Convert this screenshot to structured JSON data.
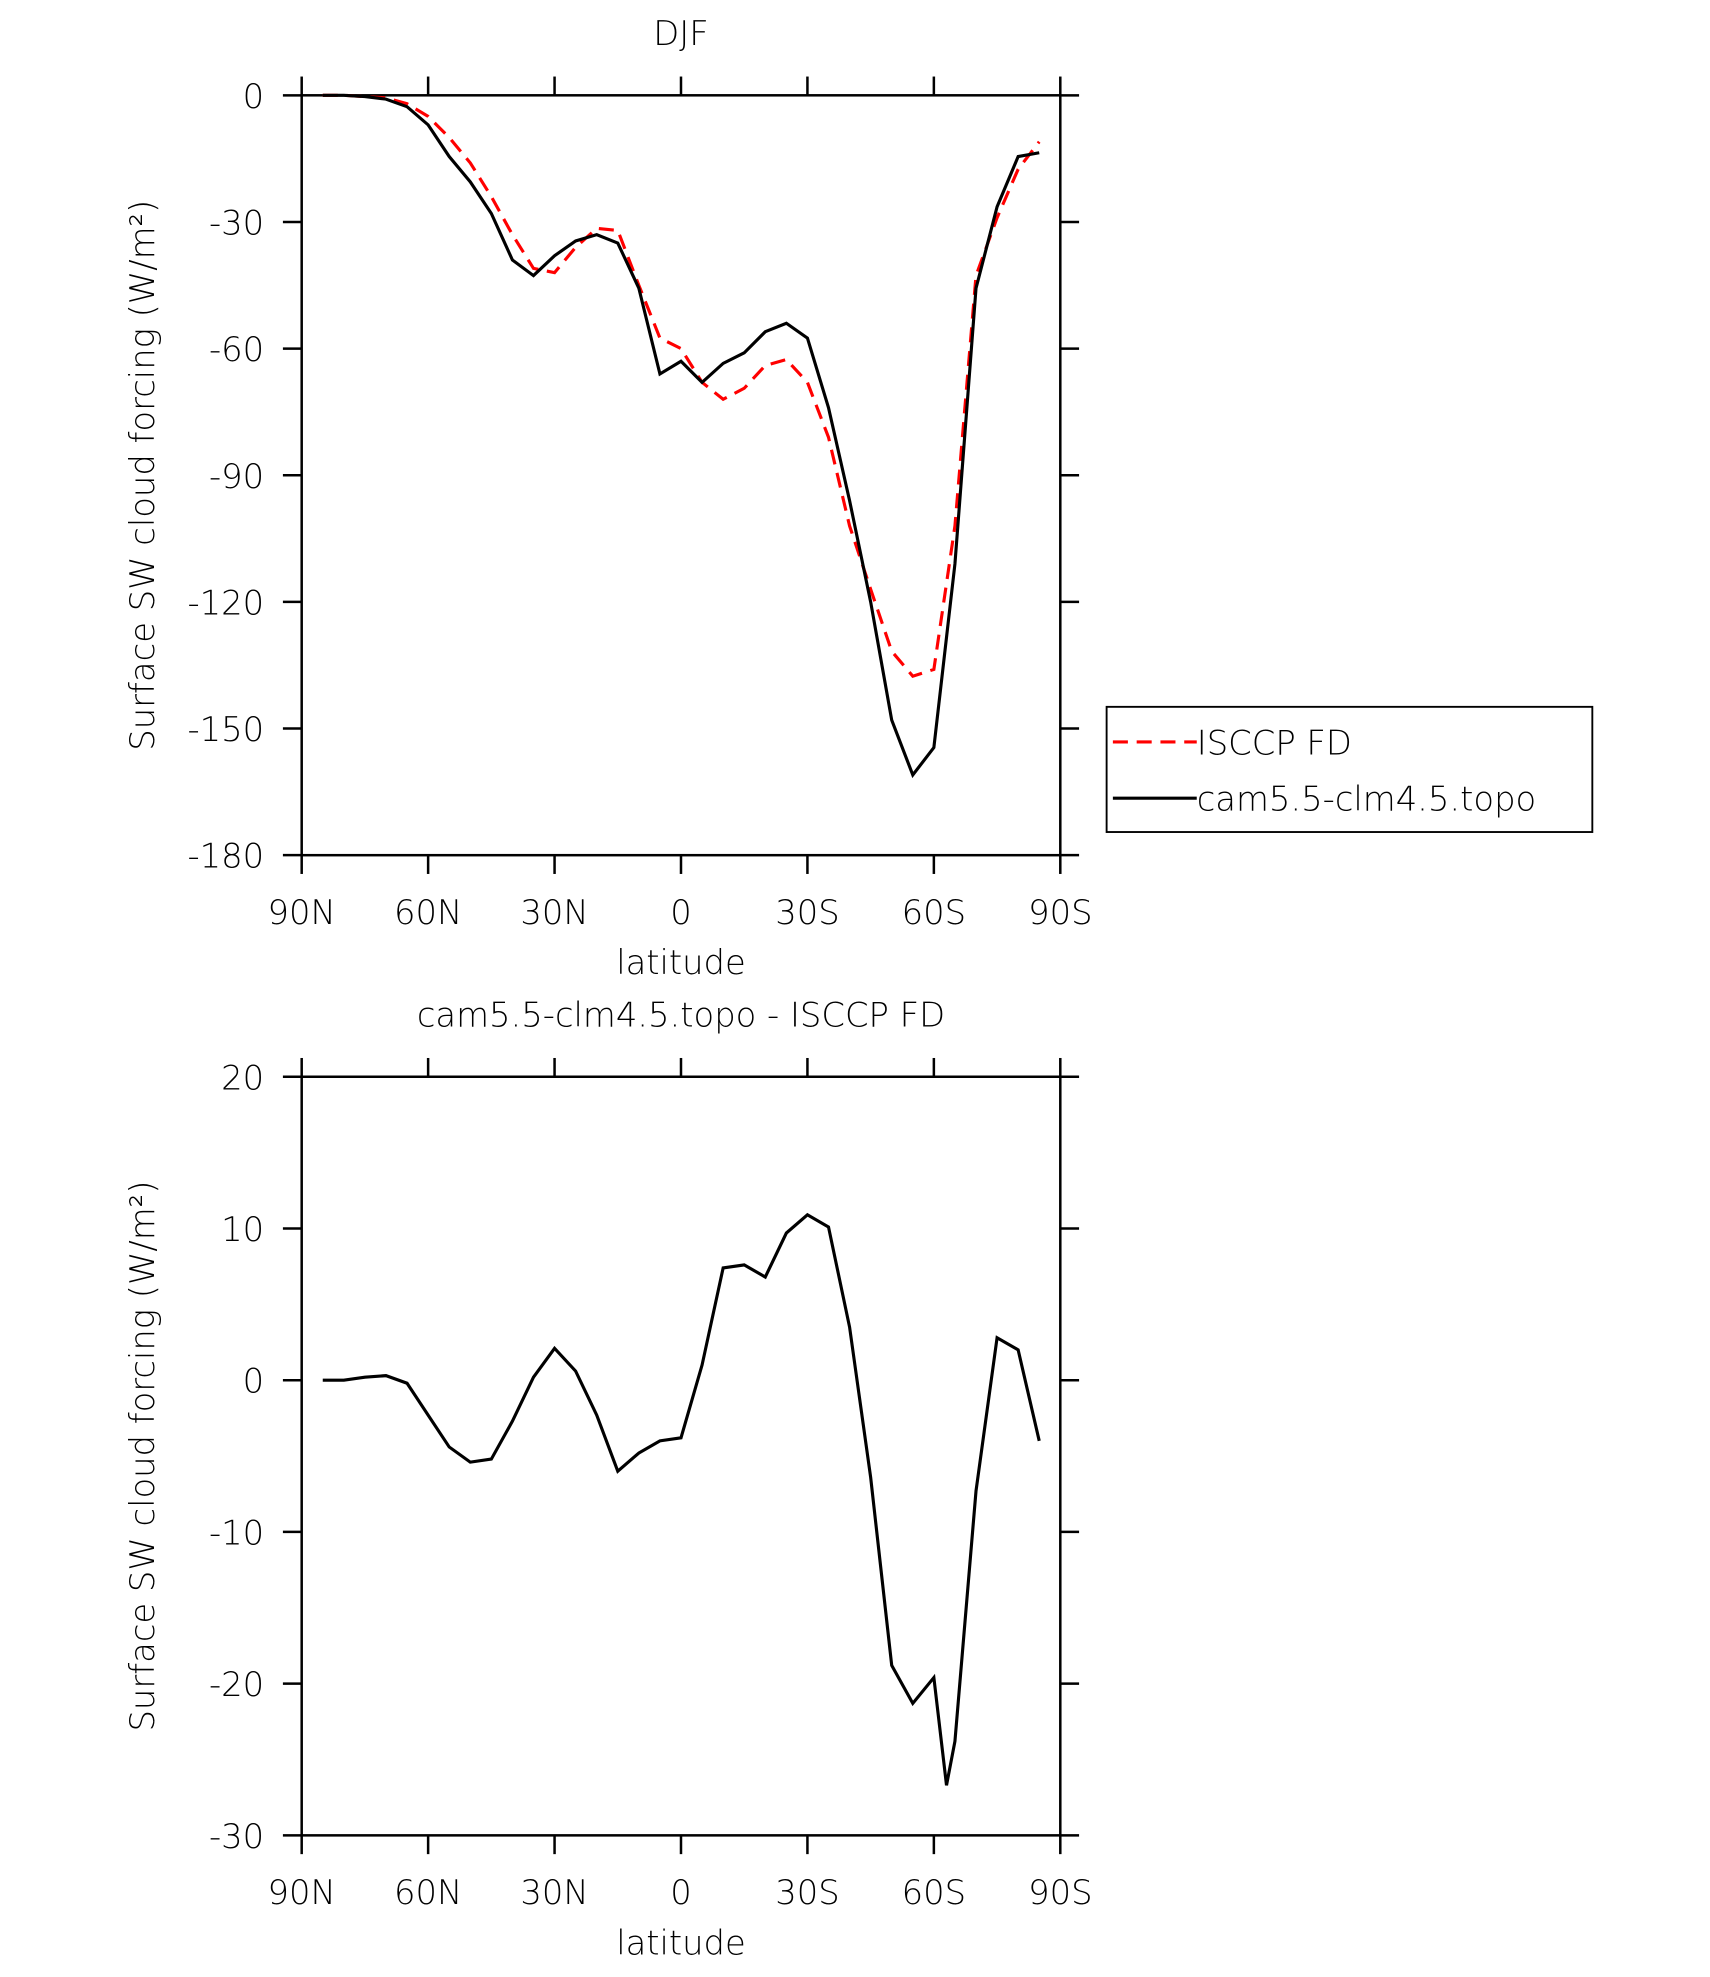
{
  "chart_data": [
    {
      "type": "line",
      "title": "DJF",
      "xlabel": "latitude",
      "ylabel": "Surface SW cloud forcing (W/m²)",
      "x": [
        85,
        80,
        75,
        70,
        65,
        60,
        55,
        50,
        45,
        40,
        35,
        30,
        25,
        20,
        15,
        10,
        5,
        0,
        -5,
        -10,
        -15,
        -20,
        -25,
        -30,
        -35,
        -40,
        -45,
        -50,
        -55,
        -60,
        -65,
        -70,
        -75,
        -80,
        -85
      ],
      "series": [
        {
          "name": "ISCCP FD",
          "color": "#ff0000",
          "linestyle": "dashed",
          "values": [
            0,
            0,
            -0.3,
            -0.6,
            -2,
            -5,
            -10,
            -16,
            -24,
            -33,
            -41,
            -42,
            -36,
            -31.5,
            -32,
            -45,
            -57.5,
            -60,
            -68,
            -72,
            -69.4,
            -64,
            -62.6,
            -68,
            -81,
            -102,
            -117,
            -131.7,
            -137.6,
            -136,
            -102,
            -42.7,
            -29,
            -17.5,
            -11
          ]
        },
        {
          "name": "cam5.5-clm4.5.topo",
          "color": "#000000",
          "linestyle": "solid",
          "values": [
            0,
            0,
            -0.3,
            -0.9,
            -2.7,
            -7,
            -14.5,
            -20.5,
            -28,
            -39,
            -42.7,
            -38,
            -34.5,
            -33,
            -35,
            -45.7,
            -66,
            -63,
            -68,
            -63.5,
            -61,
            -56,
            -54,
            -57.5,
            -74,
            -96,
            -120,
            -148,
            -161,
            -154.5,
            -111,
            -45.7,
            -26.4,
            -14.5,
            -13.6
          ]
        }
      ],
      "xlim": [
        90,
        -90
      ],
      "xticks": [
        {
          "value": 90,
          "label": "90N"
        },
        {
          "value": 60,
          "label": "60N"
        },
        {
          "value": 30,
          "label": "30N"
        },
        0,
        {
          "value": -30,
          "label": "30S"
        },
        {
          "value": -60,
          "label": "60S"
        },
        {
          "value": -90,
          "label": "90S"
        }
      ],
      "ylim": [
        -180,
        0
      ],
      "yticks": [
        0,
        -30,
        -60,
        -90,
        -120,
        -150,
        -180
      ],
      "legend": "right"
    },
    {
      "type": "line",
      "title": "cam5.5-clm4.5.topo - ISCCP FD",
      "xlabel": "latitude",
      "ylabel": "Surface SW cloud forcing (W/m²)",
      "x": [
        85,
        80,
        75,
        70,
        65,
        60,
        55,
        50,
        45,
        40,
        35,
        30,
        25,
        20,
        15,
        10,
        5,
        0,
        -5,
        -10,
        -15,
        -20,
        -25,
        -30,
        -35,
        -40,
        -45,
        -50,
        -55,
        -60,
        -63,
        -65,
        -70,
        -75,
        -80,
        -85
      ],
      "series": [
        {
          "color": "#000000",
          "linestyle": "solid",
          "values": [
            0,
            0,
            0.2,
            0.3,
            -0.2,
            -2.3,
            -4.4,
            -5.4,
            -5.2,
            -2.7,
            0.2,
            2.1,
            0.6,
            -2.3,
            -6,
            -4.8,
            -4,
            -3.8,
            1,
            7.4,
            7.6,
            6.8,
            9.7,
            10.9,
            10.1,
            3.5,
            -6.4,
            -18.8,
            -21.3,
            -19.6,
            -26.7,
            -23.8,
            -7.3,
            2.8,
            2,
            -4
          ]
        }
      ],
      "xlim": [
        90,
        -90
      ],
      "xticks": [
        {
          "value": 90,
          "label": "90N"
        },
        {
          "value": 60,
          "label": "60N"
        },
        {
          "value": 30,
          "label": "30N"
        },
        0,
        {
          "value": -30,
          "label": "30S"
        },
        {
          "value": -60,
          "label": "60S"
        },
        {
          "value": -90,
          "label": "90S"
        }
      ],
      "ylim": [
        -30,
        20
      ],
      "yticks": [
        20,
        10,
        0,
        -10,
        -20,
        -30
      ]
    }
  ]
}
